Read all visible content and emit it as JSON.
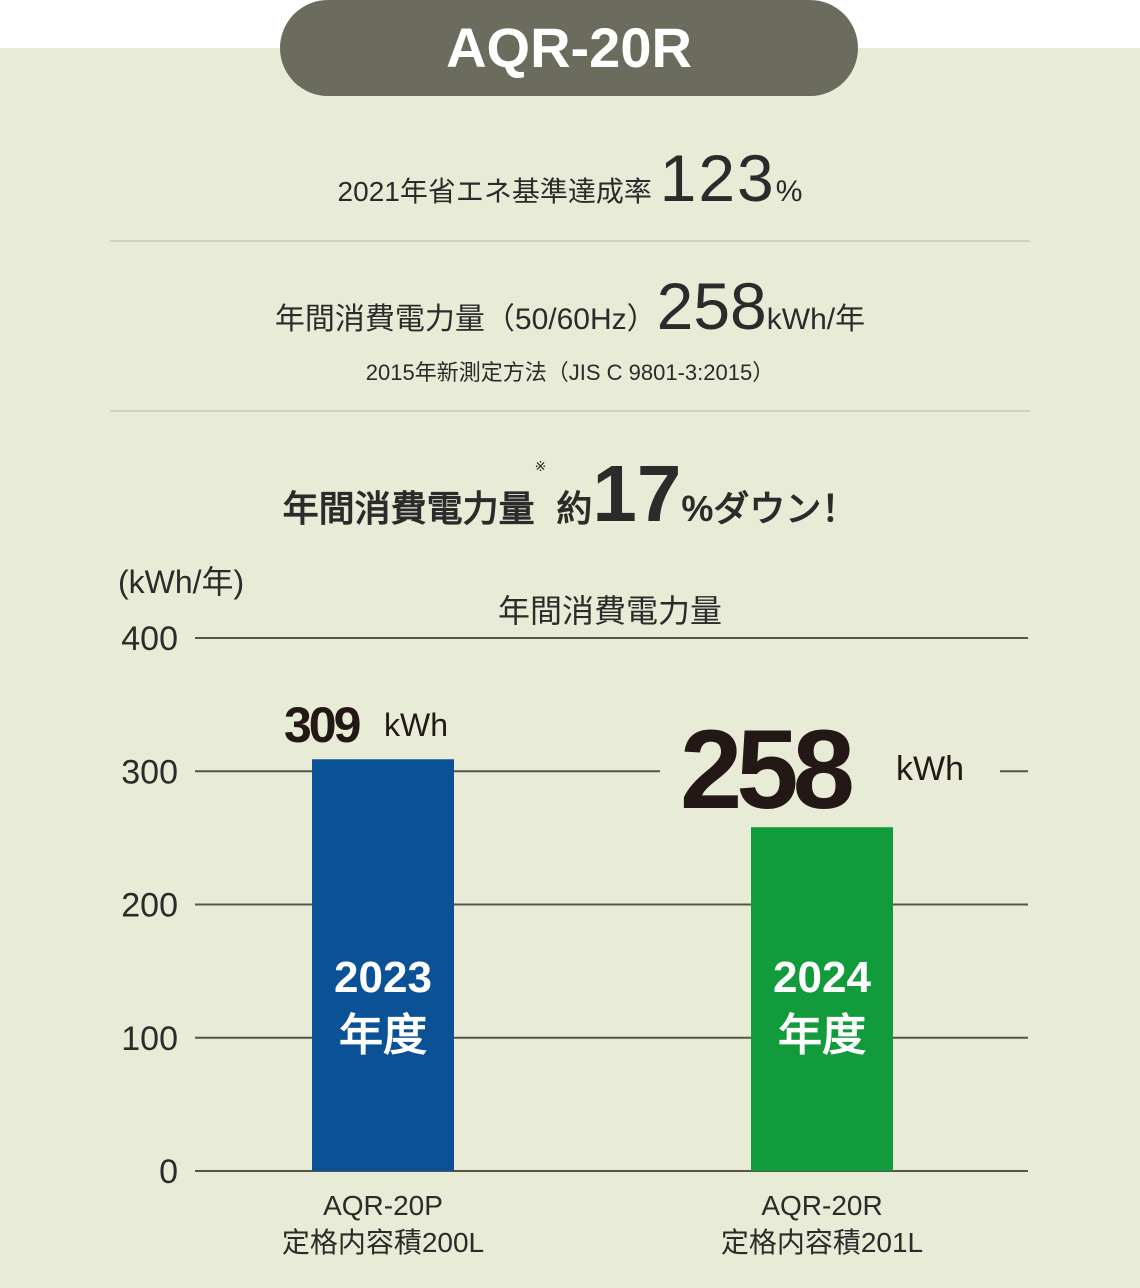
{
  "header": {
    "model": "AQR-20R"
  },
  "spec": {
    "achievement_label": "2021年省エネ基準達成率",
    "achievement_value": "123",
    "achievement_unit": "%",
    "consumption_label": "年間消費電力量（50/60Hz）",
    "consumption_value": "258",
    "consumption_unit": "kWh/年",
    "method_note": "2015年新測定方法（JIS C 9801-3:2015）"
  },
  "headline": {
    "label": "年間消費電力量",
    "mark": "※",
    "prefix": "約",
    "value": "17",
    "suffix": "%ダウン！"
  },
  "chart_data": {
    "type": "bar",
    "title": "年間消費電力量",
    "ylabel": "(kWh/年)",
    "ylim": [
      0,
      400
    ],
    "yticks": [
      0,
      100,
      200,
      300,
      400
    ],
    "grid": true,
    "categories": [
      "AQR-20P 定格内容積200L",
      "AQR-20R 定格内容積201L"
    ],
    "bars": [
      {
        "model": "AQR-20P",
        "capacity": "定格内容積200L",
        "year": "2023",
        "year_suffix": "年度",
        "value": 309,
        "value_label": "309",
        "unit": "kWh",
        "color": "#0a5196"
      },
      {
        "model": "AQR-20R",
        "capacity": "定格内容積201L",
        "year": "2024",
        "year_suffix": "年度",
        "value": 258,
        "value_label": "258",
        "unit": "kWh",
        "color": "#119b3a"
      }
    ]
  }
}
